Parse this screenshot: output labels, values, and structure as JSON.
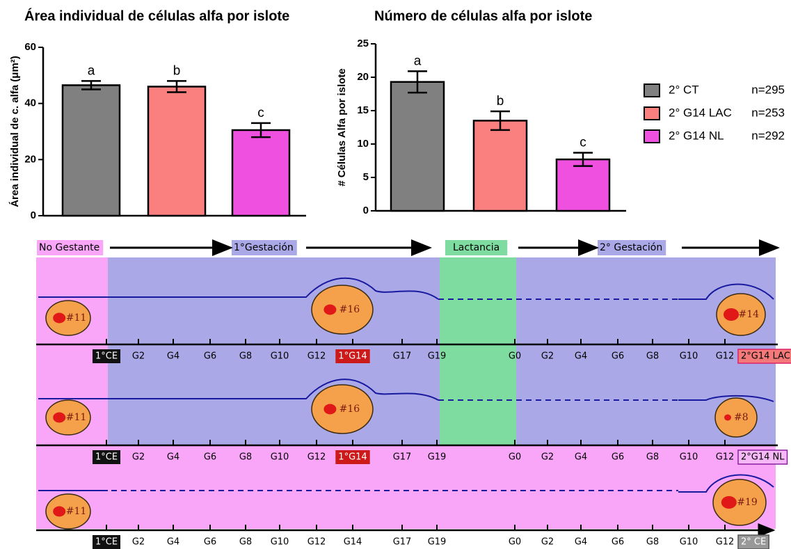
{
  "chart_data": [
    {
      "type": "bar",
      "title": "Área individual de células alfa por islote",
      "y_label": "Área individual de c. alfa (μm²)",
      "values": [
        46.5,
        46,
        30.5
      ],
      "errors": [
        1.5,
        2,
        2.5
      ],
      "annotations": [
        "a",
        "b",
        "c"
      ],
      "colors": [
        "#808080",
        "#fa8080",
        "#f050e0"
      ],
      "ylim": [
        0,
        60
      ],
      "yticks": [
        0,
        20,
        40,
        60
      ]
    },
    {
      "type": "bar",
      "title": "Número de células alfa por islote",
      "y_label": "# Células Alfa por islote",
      "values": [
        19.3,
        13.5,
        7.7
      ],
      "errors": [
        1.6,
        1.4,
        1.0
      ],
      "annotations": [
        "a",
        "b",
        "c"
      ],
      "colors": [
        "#808080",
        "#fa8080",
        "#f050e0"
      ],
      "ylim": [
        0,
        25
      ],
      "yticks": [
        0,
        5,
        10,
        15,
        20,
        25
      ]
    }
  ],
  "legend": [
    {
      "name": "2° CT",
      "n": "n=295",
      "color": "#808080"
    },
    {
      "name": "2° G14 LAC",
      "n": "n=253",
      "color": "#fa8080"
    },
    {
      "name": "2° G14 NL",
      "n": "n=292",
      "color": "#f050e0"
    }
  ],
  "diagram": {
    "phases": [
      "No Gestante",
      "1°Gestación",
      "Lactancia",
      "2° Gestación"
    ],
    "timelines": [
      {
        "ticks": [
          "1°CE",
          "G2",
          "G4",
          "G6",
          "G8",
          "G10",
          "G12",
          "1°G14",
          "G17",
          "G19",
          "G0",
          "G2",
          "G4",
          "G6",
          "G8",
          "G10",
          "G12",
          "2°G14 LAC"
        ],
        "islets": [
          "#11",
          "#16",
          "#14"
        ]
      },
      {
        "ticks": [
          "1°CE",
          "G2",
          "G4",
          "G6",
          "G8",
          "G10",
          "G12",
          "1°G14",
          "G17",
          "G19",
          "G0",
          "G2",
          "G4",
          "G6",
          "G8",
          "G10",
          "G12",
          "2°G14 NL"
        ],
        "islets": [
          "#11",
          "#16",
          "#8"
        ]
      },
      {
        "ticks": [
          "1°CE",
          "G2",
          "G4",
          "G6",
          "G8",
          "G10",
          "G12",
          "G14",
          "G17",
          "G19",
          "G0",
          "G2",
          "G4",
          "G6",
          "G8",
          "G10",
          "G12",
          "2° CE"
        ],
        "islets": [
          "#11",
          "#19"
        ]
      }
    ]
  }
}
